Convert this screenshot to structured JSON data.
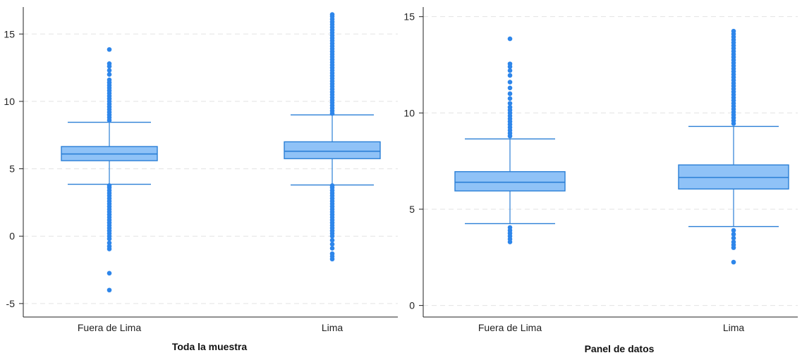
{
  "colors": {
    "box_fill": "#8fc2f7",
    "box_stroke": "#2a7fd6",
    "whisker": "#2a7fd6",
    "outlier": "#2e86ea"
  },
  "chart_data": [
    {
      "type": "boxplot",
      "title": "Toda la muestra",
      "ylim": [
        -6,
        17
      ],
      "yticks": [
        -5,
        0,
        5,
        10,
        15
      ],
      "grid": true,
      "categories": [
        "Fuera de Lima",
        "Lima"
      ],
      "boxes": [
        {
          "category": "Fuera de Lima",
          "whisker_low": 3.85,
          "q1": 5.6,
          "median": 6.1,
          "q3": 6.65,
          "whisker_high": 8.45,
          "outliers": [
            -4.0,
            -2.75,
            -0.95,
            -0.75,
            -0.5,
            -0.2,
            0.0,
            0.2,
            0.4,
            0.6,
            0.8,
            1.0,
            1.2,
            1.4,
            1.6,
            1.8,
            2.0,
            2.2,
            2.4,
            2.6,
            2.8,
            3.0,
            3.2,
            3.4,
            3.6,
            3.75,
            8.6,
            8.8,
            9.0,
            9.2,
            9.4,
            9.6,
            9.8,
            10.0,
            10.2,
            10.4,
            10.6,
            10.8,
            11.0,
            11.2,
            11.4,
            11.6,
            12.0,
            12.3,
            12.6,
            12.8,
            13.85
          ]
        },
        {
          "category": "Lima",
          "whisker_low": 3.8,
          "q1": 5.75,
          "median": 6.3,
          "q3": 7.0,
          "whisker_high": 9.0,
          "outliers": [
            -1.7,
            -1.5,
            -1.3,
            -0.9,
            -0.6,
            -0.3,
            0.0,
            0.2,
            0.4,
            0.6,
            0.8,
            1.0,
            1.2,
            1.4,
            1.6,
            1.8,
            2.0,
            2.2,
            2.4,
            2.6,
            2.8,
            3.0,
            3.2,
            3.4,
            3.6,
            3.75,
            9.1,
            9.3,
            9.5,
            9.7,
            9.9,
            10.1,
            10.3,
            10.5,
            10.7,
            10.9,
            11.1,
            11.3,
            11.5,
            11.7,
            11.9,
            12.1,
            12.3,
            12.5,
            12.7,
            12.9,
            13.1,
            13.3,
            13.5,
            13.7,
            13.9,
            14.1,
            14.3,
            14.5,
            14.7,
            14.9,
            15.1,
            15.3,
            15.5,
            15.7,
            15.9,
            16.1,
            16.3,
            16.45
          ]
        }
      ]
    },
    {
      "type": "boxplot",
      "title": "Panel de datos",
      "ylim": [
        -0.6,
        15.5
      ],
      "yticks": [
        0,
        5,
        10,
        15
      ],
      "grid": true,
      "categories": [
        "Fuera de Lima",
        "Lima"
      ],
      "boxes": [
        {
          "category": "Fuera de Lima",
          "whisker_low": 4.25,
          "q1": 5.95,
          "median": 6.4,
          "q3": 6.95,
          "whisker_high": 8.65,
          "outliers": [
            3.3,
            3.45,
            3.6,
            3.75,
            3.9,
            4.05,
            8.8,
            8.95,
            9.1,
            9.25,
            9.4,
            9.55,
            9.7,
            9.85,
            10.0,
            10.15,
            10.3,
            10.5,
            10.75,
            11.0,
            11.3,
            11.6,
            11.95,
            12.2,
            12.4,
            12.55,
            13.85
          ]
        },
        {
          "category": "Lima",
          "whisker_low": 4.1,
          "q1": 6.05,
          "median": 6.65,
          "q3": 7.3,
          "whisker_high": 9.3,
          "outliers": [
            2.25,
            3.0,
            3.15,
            3.3,
            3.5,
            3.7,
            3.9,
            9.45,
            9.6,
            9.75,
            9.9,
            10.05,
            10.2,
            10.35,
            10.5,
            10.65,
            10.8,
            10.95,
            11.1,
            11.25,
            11.4,
            11.55,
            11.7,
            11.85,
            12.0,
            12.15,
            12.3,
            12.45,
            12.6,
            12.75,
            12.9,
            13.05,
            13.2,
            13.35,
            13.5,
            13.65,
            13.8,
            13.95,
            14.1,
            14.25
          ]
        }
      ]
    }
  ]
}
